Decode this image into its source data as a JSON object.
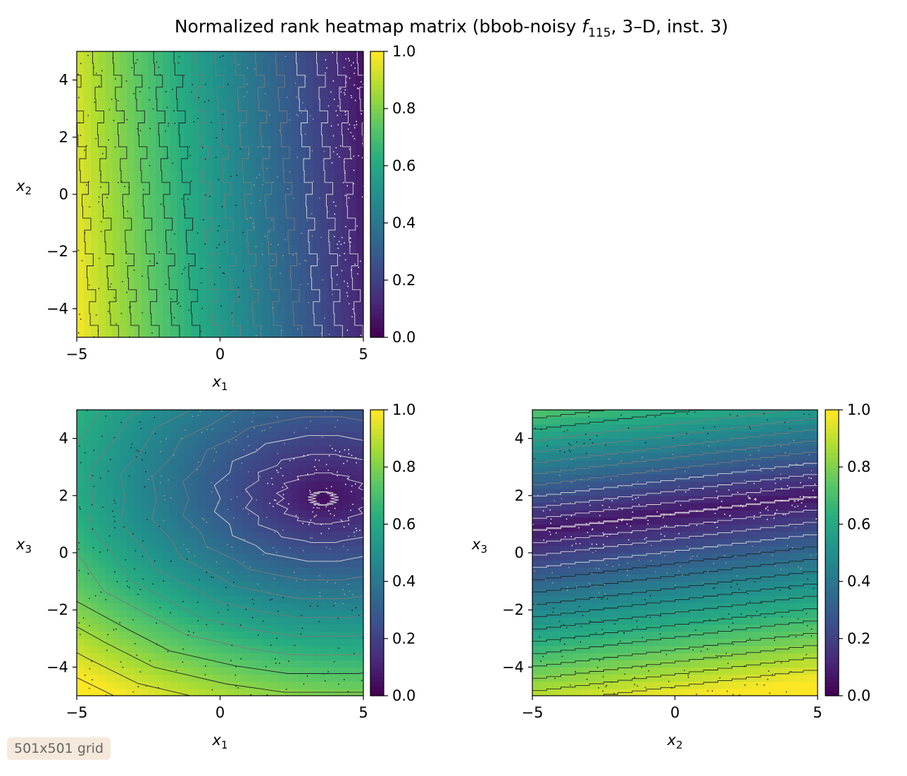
{
  "figure": {
    "title_prefix": "Normalized rank heatmap matrix (bbob-noisy ",
    "title_func": "f",
    "title_sub": "115",
    "title_suffix": ", 3–D, inst. 3)",
    "badge": "501x501 grid"
  },
  "chart_data": [
    {
      "type": "heatmap",
      "panel": "x1-x2",
      "xlabel": "x",
      "xlabel_sub": "1",
      "ylabel": "x",
      "ylabel_sub": "2",
      "xlim": [
        -5,
        5
      ],
      "ylim": [
        -5,
        5
      ],
      "xticks": [
        -5,
        0,
        5
      ],
      "yticks": [
        -4,
        -2,
        0,
        2,
        4
      ],
      "colorbar": {
        "range": [
          0,
          1
        ],
        "ticks": [
          "0.0",
          "0.2",
          "0.4",
          "0.6",
          "0.8",
          "1.0"
        ],
        "colormap": "viridis"
      },
      "gradient": {
        "a": -0.085,
        "b": -0.01,
        "c": 0.0
      },
      "contour_style": "vertical",
      "min_region": [
        3.2,
        1.8
      ],
      "pattern": "columns"
    },
    {
      "type": "heatmap",
      "panel": "x1-x3",
      "xlabel": "x",
      "xlabel_sub": "1",
      "ylabel": "x",
      "ylabel_sub": "3",
      "xlim": [
        -5,
        5
      ],
      "ylim": [
        -5,
        5
      ],
      "xticks": [
        -5,
        0,
        5
      ],
      "yticks": [
        -4,
        -2,
        0,
        2,
        4
      ],
      "colorbar": {
        "range": [
          0,
          1
        ],
        "ticks": [
          "0.0",
          "0.2",
          "0.4",
          "0.6",
          "0.8",
          "1.0"
        ],
        "colormap": "viridis"
      },
      "gradient": {
        "a": -0.05,
        "b": -0.085,
        "c": 0.0
      },
      "contour_style": "diagonal",
      "min_region": [
        3.5,
        2.0
      ],
      "pattern": "diamonds"
    },
    {
      "type": "heatmap",
      "panel": "x2-x3",
      "xlabel": "x",
      "xlabel_sub": "2",
      "ylabel": "x",
      "ylabel_sub": "3",
      "xlim": [
        -5,
        5
      ],
      "ylim": [
        -5,
        5
      ],
      "xticks": [
        -5,
        0,
        5
      ],
      "yticks": [
        -4,
        -2,
        0,
        2,
        4
      ],
      "colorbar": {
        "range": [
          0,
          1
        ],
        "ticks": [
          "0.0",
          "0.2",
          "0.4",
          "0.6",
          "0.8",
          "1.0"
        ],
        "colormap": "viridis"
      },
      "gradient": {
        "a": 0.0,
        "b": 0.0,
        "c": 1.0
      },
      "contour_style": "horizontal",
      "min_region": [
        2.0,
        2.0
      ],
      "pattern": "bands"
    }
  ]
}
